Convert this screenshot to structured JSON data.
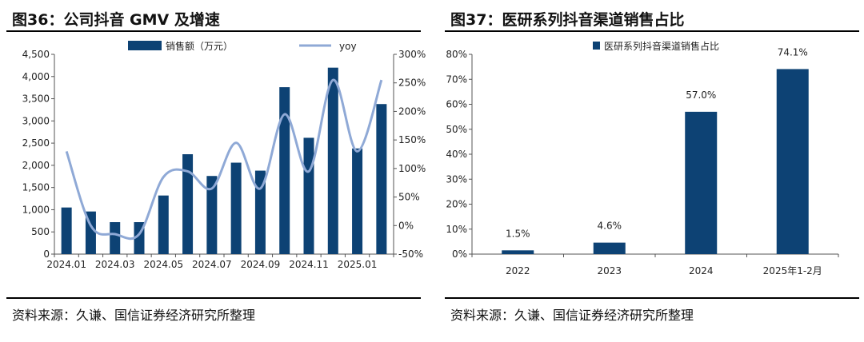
{
  "colors": {
    "bar": "#0d4274",
    "line": "#8fa9d6",
    "axis": "#555555",
    "text": "#222222"
  },
  "left": {
    "title": "图36：公司抖音 GMV 及增速",
    "source": "资料来源：久谦、国信证券经济研究所整理",
    "chart_data": {
      "type": "bar+line",
      "title": "图36：公司抖音 GMV 及增速",
      "categories": [
        "2024.01",
        "2024.02",
        "2024.03",
        "2024.04",
        "2024.05",
        "2024.06",
        "2024.07",
        "2024.08",
        "2024.09",
        "2024.10",
        "2024.11",
        "2024.12",
        "2025.01",
        "2025.02"
      ],
      "x_tick_labels": [
        "2024.01",
        "2024.03",
        "2024.05",
        "2024.07",
        "2024.09",
        "2024.11",
        "2025.01"
      ],
      "series": [
        {
          "name": "销售额（万元）",
          "type": "bar",
          "axis": "left",
          "values": [
            1050,
            960,
            720,
            720,
            1320,
            2250,
            1760,
            2060,
            1880,
            3760,
            2620,
            4200,
            2380,
            3380
          ]
        },
        {
          "name": "yoy",
          "type": "line",
          "axis": "right",
          "smooth": true,
          "values": [
            130,
            0,
            -15,
            -15,
            85,
            95,
            65,
            145,
            65,
            195,
            95,
            255,
            130,
            255
          ]
        }
      ],
      "y_left": {
        "min": 0,
        "max": 4500,
        "step": 500,
        "tick_labels": [
          "0",
          "500",
          "1,000",
          "1,500",
          "2,000",
          "2,500",
          "3,000",
          "3,500",
          "4,000",
          "4,500"
        ]
      },
      "y_right": {
        "min": -50,
        "max": 300,
        "step": 50,
        "tick_labels": [
          "-50%",
          "0%",
          "50%",
          "100%",
          "150%",
          "200%",
          "250%",
          "300%"
        ]
      },
      "legend_position": "top",
      "grid": false
    }
  },
  "right": {
    "title": "图37：医研系列抖音渠道销售占比",
    "source": "资料来源：久谦、国信证券经济研究所整理",
    "chart_data": {
      "type": "bar",
      "title": "图37：医研系列抖音渠道销售占比",
      "categories": [
        "2022",
        "2023",
        "2024",
        "2025年1-2月"
      ],
      "series": [
        {
          "name": "医研系列抖音渠道销售占比",
          "values": [
            1.5,
            4.6,
            57.0,
            74.1
          ]
        }
      ],
      "data_labels": [
        "1.5%",
        "4.6%",
        "57.0%",
        "74.1%"
      ],
      "y": {
        "min": 0,
        "max": 80,
        "step": 10,
        "tick_labels": [
          "0%",
          "10%",
          "20%",
          "30%",
          "40%",
          "50%",
          "60%",
          "70%",
          "80%"
        ]
      },
      "legend_position": "top",
      "grid": false
    }
  }
}
